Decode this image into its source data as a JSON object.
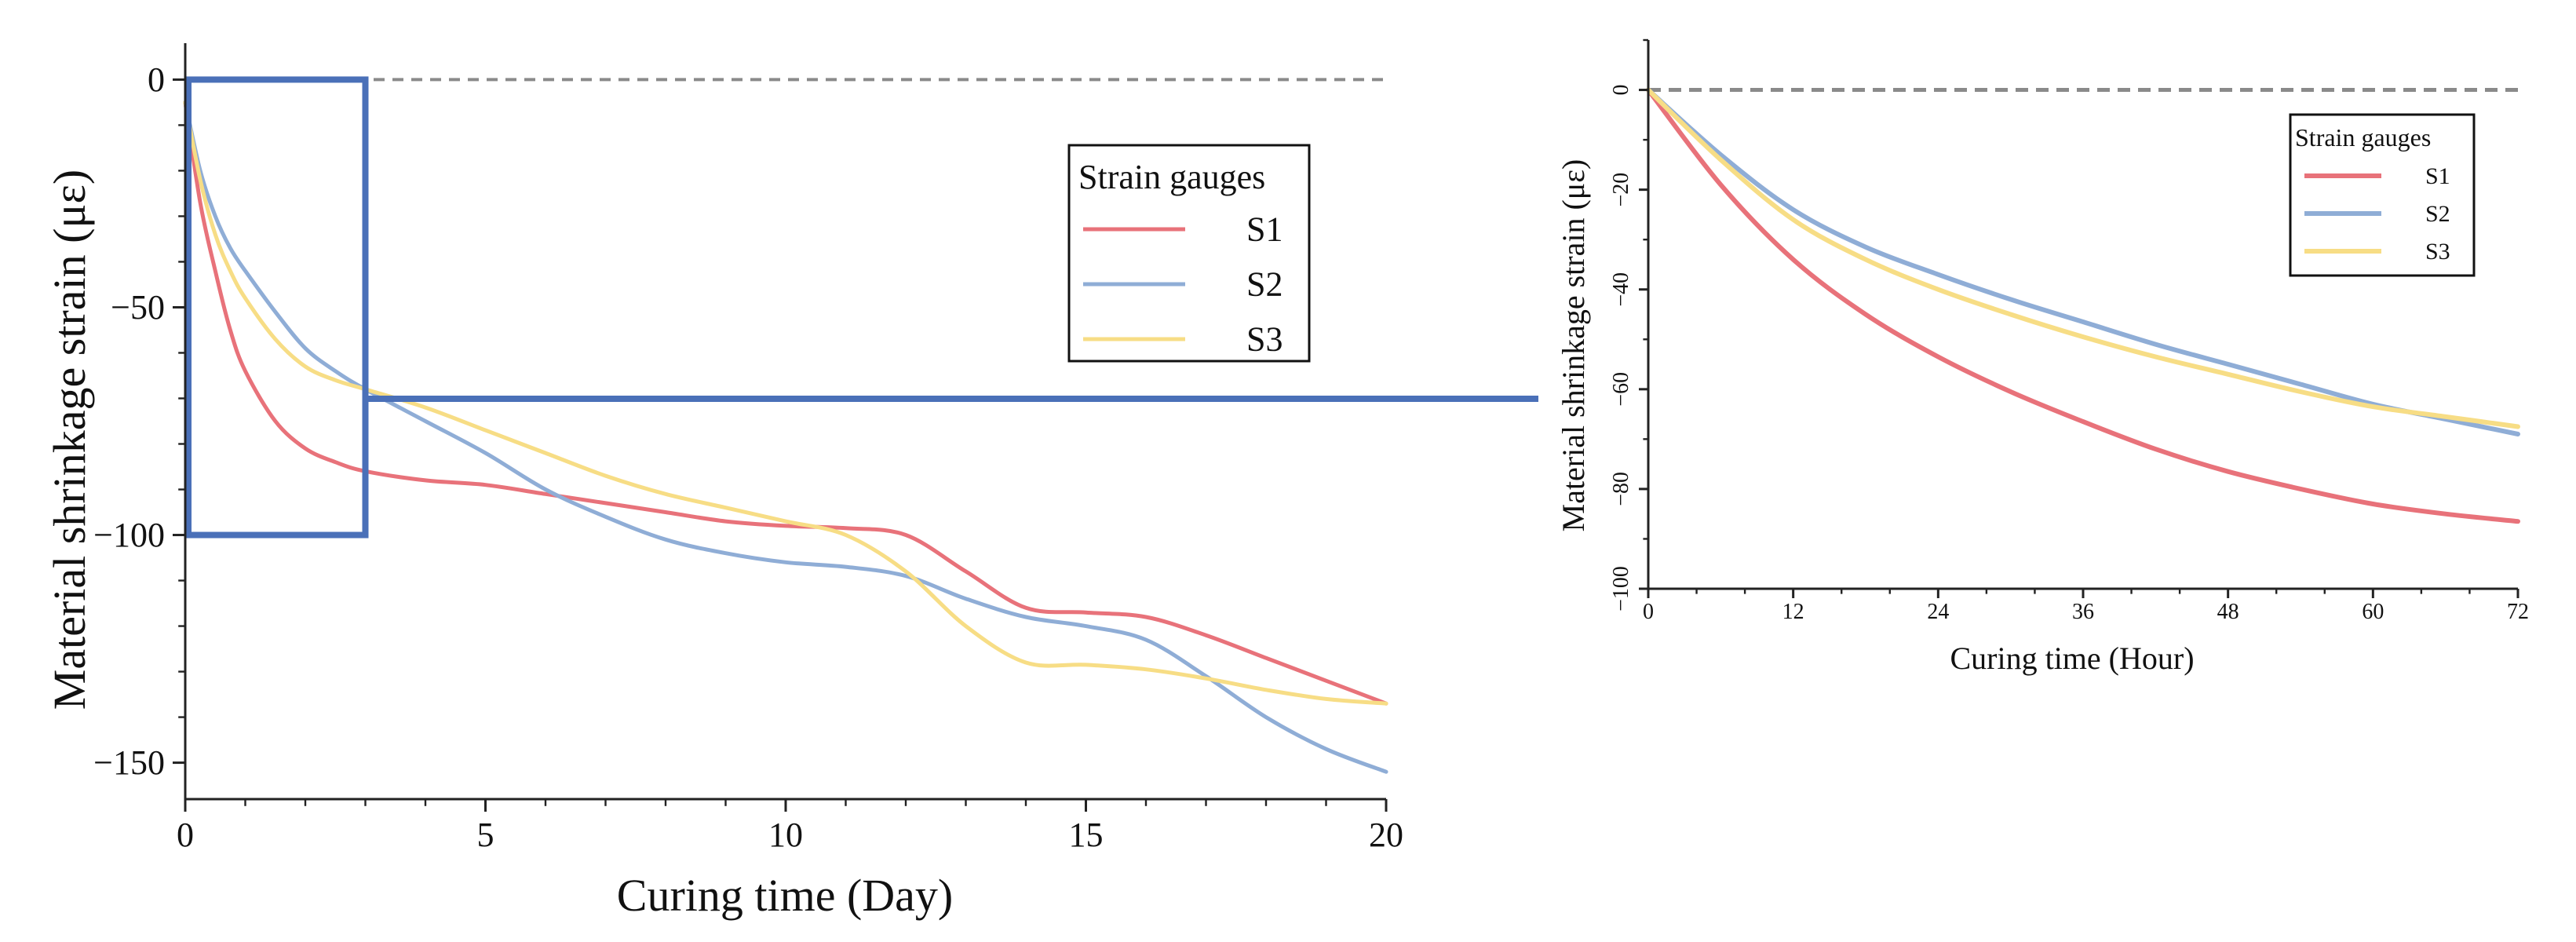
{
  "colors": {
    "S1": "#e8727a",
    "S2": "#8fadd6",
    "S3": "#f7dd85",
    "frame": "#4a70b8",
    "zero_line": "#8a8a8a",
    "axis": "#222222"
  },
  "chart_data": [
    {
      "type": "line",
      "xlabel": "Curing time (Day)",
      "ylabel": "Material shrinkage strain (με)",
      "xlim": [
        0,
        20
      ],
      "ylim": [
        -158,
        8
      ],
      "xticks": [
        "0",
        "5",
        "10",
        "15",
        "20"
      ],
      "yticks": [
        "0",
        "−50",
        "−100",
        "−150"
      ],
      "zero_reference_line": true,
      "zoom_box": {
        "x": [
          0,
          3
        ],
        "y": [
          -100,
          0
        ]
      },
      "legend": {
        "title": "Strain gauges",
        "position": "top-right"
      },
      "x": [
        0,
        0.25,
        0.5,
        0.75,
        1,
        1.5,
        2,
        2.5,
        3,
        4,
        5,
        6,
        7,
        8,
        9,
        10,
        11,
        12,
        13,
        14,
        15,
        16,
        17,
        18,
        19,
        20
      ],
      "series": [
        {
          "name": "S1",
          "values": [
            -5,
            -27,
            -42,
            -55,
            -64,
            -75,
            -81,
            -84,
            -86,
            -88,
            -89,
            -91,
            -93,
            -95,
            -97,
            -98,
            -98.5,
            -100,
            -108,
            -116,
            -117,
            -118,
            -122,
            -127,
            -132,
            -137
          ]
        },
        {
          "name": "S2",
          "values": [
            -5,
            -20,
            -30,
            -37,
            -42,
            -51,
            -59,
            -64,
            -68,
            -75,
            -82,
            -90,
            -96,
            -101,
            -104,
            -106,
            -107,
            -109,
            -114,
            -118,
            -120,
            -123,
            -131,
            -140,
            -147,
            -152
          ]
        },
        {
          "name": "S3",
          "values": [
            -5,
            -22,
            -34,
            -42,
            -48,
            -57,
            -63,
            -66,
            -68,
            -72,
            -77,
            -82,
            -87,
            -91,
            -94,
            -97,
            -100,
            -108,
            -120,
            -128,
            -128.5,
            -129.5,
            -131.5,
            -134,
            -136,
            -137
          ]
        }
      ]
    },
    {
      "type": "line",
      "xlabel": "Curing time (Hour)",
      "ylabel": "Material shrinkage strain (με)",
      "xlim": [
        0,
        72
      ],
      "ylim": [
        -100,
        10
      ],
      "xticks": [
        "0",
        "12",
        "24",
        "36",
        "48",
        "60",
        "72"
      ],
      "yticks": [
        "0",
        "−20",
        "−40",
        "−60",
        "−80",
        "−100"
      ],
      "zero_reference_line": true,
      "legend": {
        "title": "Strain gauges",
        "position": "top-right"
      },
      "x": [
        0,
        6,
        12,
        18,
        24,
        30,
        36,
        42,
        48,
        54,
        60,
        66,
        72
      ],
      "series": [
        {
          "name": "S1",
          "values": [
            0,
            -19,
            -34,
            -45,
            -53.5,
            -60.5,
            -66.5,
            -72,
            -76.5,
            -80,
            -83,
            -85,
            -86.5
          ]
        },
        {
          "name": "S2",
          "values": [
            0,
            -13,
            -24,
            -31.5,
            -37,
            -42,
            -46.5,
            -51,
            -55,
            -59,
            -63,
            -66,
            -69
          ]
        },
        {
          "name": "S3",
          "values": [
            0,
            -14,
            -26,
            -34,
            -40,
            -45,
            -49.5,
            -53.5,
            -57,
            -60.5,
            -63.5,
            -65.5,
            -67.5
          ]
        }
      ]
    }
  ]
}
